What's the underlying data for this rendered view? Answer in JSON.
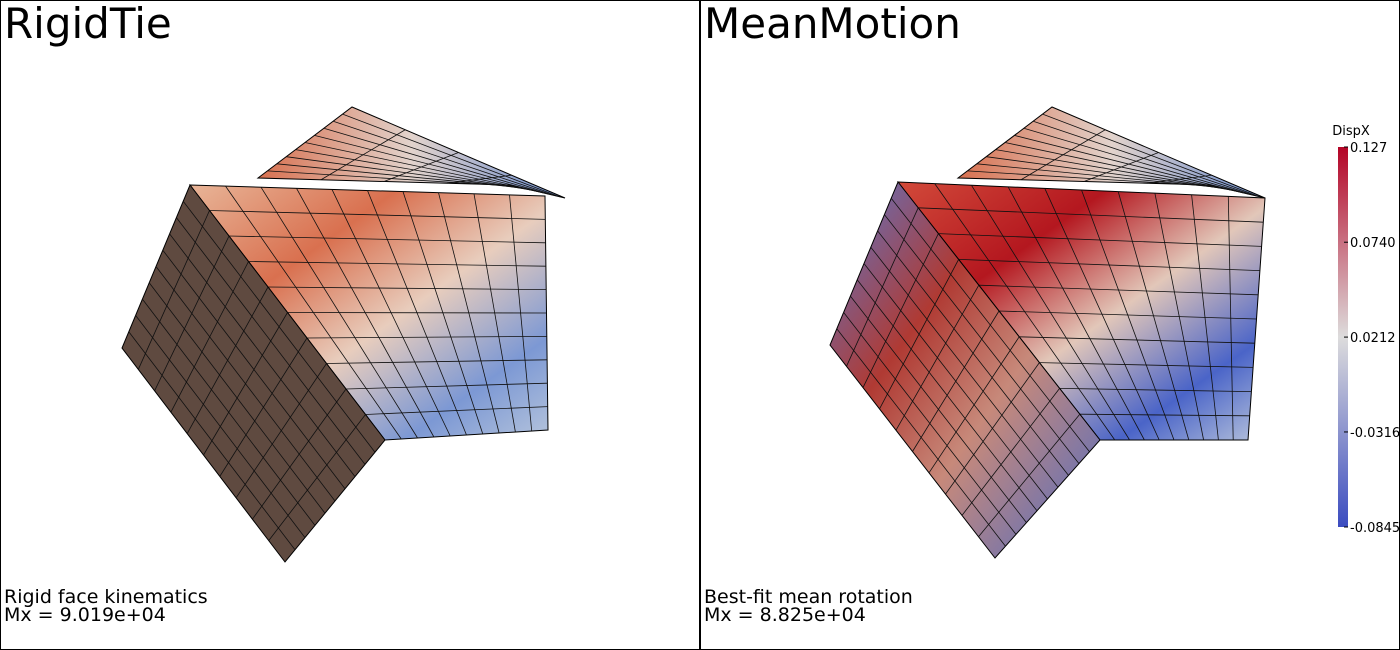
{
  "panels": [
    {
      "title": "RigidTie",
      "caption": "Rigid face kinematics",
      "moment": "Mx = 9.019e+04"
    },
    {
      "title": "MeanMotion",
      "caption": "Best-fit mean rotation",
      "moment": "Mx = 8.825e+04"
    }
  ],
  "colorbar": {
    "title": "DispX",
    "ticks": [
      {
        "value": 0.127,
        "label": "0.127"
      },
      {
        "value": 0.074,
        "label": "0.0740"
      },
      {
        "value": 0.0212,
        "label": "0.0212"
      },
      {
        "value": -0.0316,
        "label": "-0.0316"
      },
      {
        "value": -0.0845,
        "label": "-0.0845"
      }
    ]
  }
}
